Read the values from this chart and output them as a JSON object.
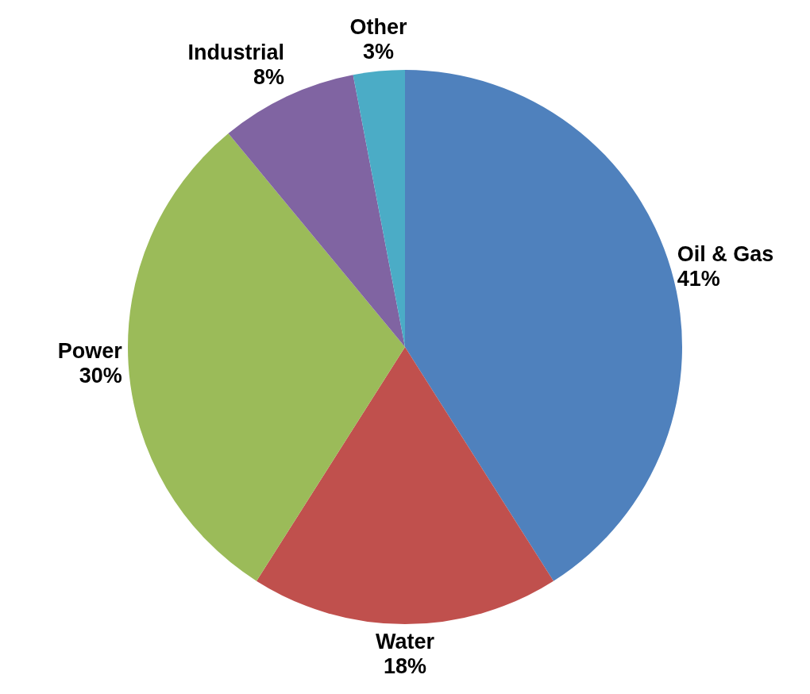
{
  "chart_data": {
    "type": "pie",
    "categories": [
      "Oil & Gas",
      "Water",
      "Power",
      "Industrial",
      "Other"
    ],
    "values": [
      41,
      18,
      30,
      8,
      3
    ],
    "value_labels": [
      "41%",
      "18%",
      "30%",
      "8%",
      "3%"
    ],
    "colors": [
      "#4f81bd",
      "#c0504d",
      "#9bbb59",
      "#8064a2",
      "#4bacc6"
    ],
    "legend": false
  }
}
